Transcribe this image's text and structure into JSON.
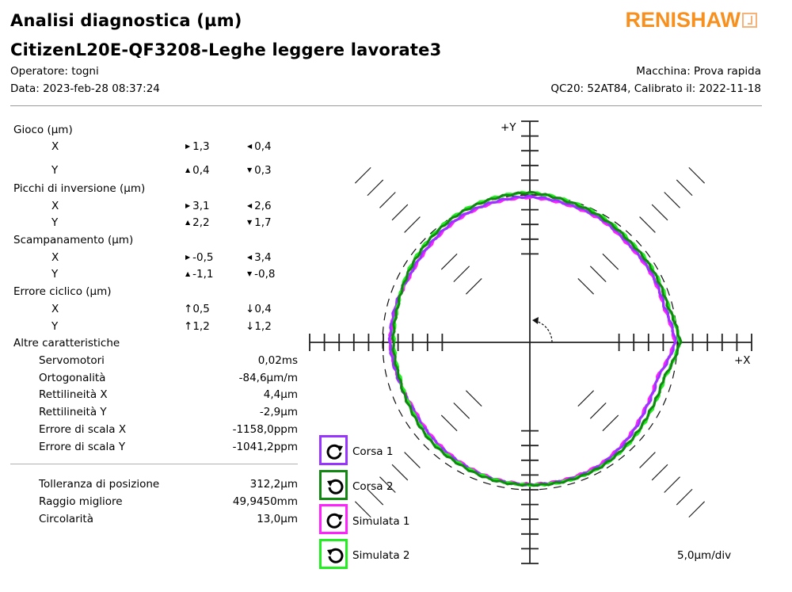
{
  "header": {
    "title": "Analisi diagnostica (µm)",
    "subtitle": "CitizenL20E-QF3208-Leghe leggere lavorate3",
    "operator": "Operatore: togni",
    "date": "Data: 2023-feb-28 08:37:24",
    "machine": "Macchina: Prova rapida",
    "device": "QC20: 52AT84, Calibrato il: 2022-11-18",
    "logo": "RENISHAW",
    "logo_color": "#f7901e"
  },
  "results": {
    "gioco": {
      "label": "Gioco (µm)",
      "x": {
        "axis": "X",
        "pos": "1,3",
        "neg": "0,4"
      },
      "y": {
        "axis": "Y",
        "pos": "0,4",
        "neg": "0,3"
      }
    },
    "picchi": {
      "label": "Picchi di inversione (µm)",
      "x": {
        "axis": "X",
        "pos": "3,1",
        "neg": "2,6"
      },
      "y": {
        "axis": "Y",
        "pos": "2,2",
        "neg": "1,7"
      }
    },
    "scampanamento": {
      "label": "Scampanamento (µm)",
      "x": {
        "axis": "X",
        "pos": "-0,5",
        "neg": "3,4"
      },
      "y": {
        "axis": "Y",
        "pos": "-1,1",
        "neg": "-0,8"
      }
    },
    "ciclico": {
      "label": "Errore ciclico (µm)",
      "x": {
        "axis": "X",
        "pos": "0,5",
        "neg": "0,4"
      },
      "y": {
        "axis": "Y",
        "pos": "1,2",
        "neg": "1,2"
      }
    },
    "altre": {
      "label": "Altre caratteristiche",
      "items": [
        {
          "label": "Servomotori",
          "value": "0,02ms"
        },
        {
          "label": "Ortogonalità",
          "value": "-84,6µm/m"
        },
        {
          "label": "Rettilineità X",
          "value": "4,4µm"
        },
        {
          "label": "Rettilineità Y",
          "value": "-2,9µm"
        },
        {
          "label": "Errore di scala X",
          "value": "-1158,0ppm"
        },
        {
          "label": "Errore di scala Y",
          "value": "-1041,2ppm"
        }
      ]
    },
    "summary": [
      {
        "label": "Tolleranza di posizione",
        "value": "312,2µm"
      },
      {
        "label": "Raggio migliore",
        "value": "49,9450mm"
      },
      {
        "label": "Circolarità",
        "value": "13,0µm"
      }
    ]
  },
  "icons": {
    "right": "▶",
    "left": "◀",
    "up": "▲",
    "down": "▼",
    "cyc_up": "↑",
    "cyc_down": "↓"
  },
  "legend": [
    {
      "label": "Corsa 1",
      "color": "#9933ff",
      "icon": "clockwise-arrow-icon"
    },
    {
      "label": "Corsa 2",
      "color": "#118811",
      "icon": "counterclockwise-arrow-icon"
    },
    {
      "label": "Simulata 1",
      "color": "#ff22ff",
      "icon": "clockwise-arrow-icon"
    },
    {
      "label": "Simulata 2",
      "color": "#22ee22",
      "icon": "counterclockwise-arrow-icon"
    }
  ],
  "chart_data": {
    "type": "polar-line",
    "title": "Ballbar circular test plot",
    "xlabel": "+X",
    "ylabel": "+Y",
    "scale_label": "5,0µm/div",
    "scale_um_per_div": 5.0,
    "reference_circle": "dashed",
    "angles_deg": [
      0,
      15,
      30,
      45,
      60,
      75,
      90,
      105,
      120,
      135,
      150,
      165,
      180,
      195,
      210,
      225,
      240,
      255,
      270,
      285,
      300,
      315,
      330,
      345
    ],
    "series": [
      {
        "name": "Corsa 1",
        "color": "#9933ff",
        "radial_error_div": [
          -0.2,
          -1.0,
          -0.9,
          -1.0,
          -0.6,
          -0.5,
          -0.2,
          -0.3,
          -0.5,
          -0.9,
          -1.2,
          -1.0,
          -0.9,
          -1.3,
          -1.6,
          -1.3,
          -1.0,
          -0.7,
          -0.6,
          -0.6,
          -0.7,
          -1.2,
          -1.7,
          -1.8
        ]
      },
      {
        "name": "Corsa 2",
        "color": "#118811",
        "radial_error_div": [
          0.4,
          -0.6,
          -0.6,
          -0.7,
          -0.4,
          -0.2,
          0.3,
          0.1,
          -0.1,
          -0.5,
          -0.9,
          -1.3,
          -1.3,
          -1.5,
          -1.3,
          -0.9,
          -0.8,
          -0.6,
          -0.6,
          -0.5,
          -0.5,
          -0.8,
          -1.1,
          -1.1
        ]
      },
      {
        "name": "Simulata 1",
        "color": "#ff22ff",
        "radial_error_div": [
          -0.3,
          -1.1,
          -1.0,
          -1.1,
          -0.7,
          -0.6,
          -0.3,
          -0.4,
          -0.6,
          -1.0,
          -1.3,
          -1.1,
          -0.9,
          -1.4,
          -1.7,
          -1.4,
          -1.1,
          -0.8,
          -0.7,
          -0.7,
          -0.8,
          -1.3,
          -1.8,
          -1.9
        ]
      },
      {
        "name": "Simulata 2",
        "color": "#22ee22",
        "radial_error_div": [
          0.3,
          -0.5,
          -0.5,
          -0.6,
          -0.3,
          -0.1,
          0.3,
          0.2,
          0.0,
          -0.4,
          -0.8,
          -1.3,
          -1.4,
          -1.6,
          -1.4,
          -1.0,
          -0.9,
          -0.7,
          -0.6,
          -0.5,
          -0.5,
          -0.7,
          -1.0,
          -1.0
        ]
      }
    ],
    "grid": false,
    "legend_position": "bottom-left"
  }
}
